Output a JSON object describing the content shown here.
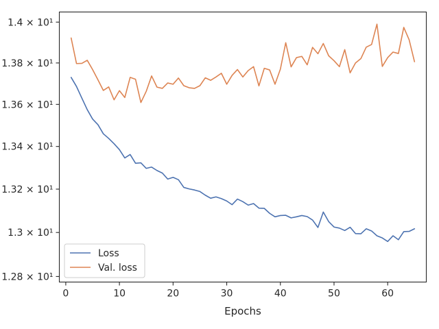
{
  "chart_data": {
    "type": "line",
    "title": "",
    "xlabel": "Epochs",
    "ylabel": "",
    "xlim": [
      -1.2,
      67.2
    ],
    "ylim": [
      12.775,
      14.05
    ],
    "y_scale": "log",
    "grid": false,
    "legend_position": "lower-left",
    "x_ticks": [
      0,
      10,
      20,
      30,
      40,
      50,
      60
    ],
    "x_tick_labels": [
      "0",
      "10",
      "20",
      "30",
      "40",
      "50",
      "60"
    ],
    "y_ticks": [
      12.8,
      13.0,
      13.2,
      13.4,
      13.6,
      13.8,
      14.0
    ],
    "y_tick_labels": [
      "1.28 × 10¹",
      "1.3 × 10¹",
      "1.32 × 10¹",
      "1.34 × 10¹",
      "1.36 × 10¹",
      "1.38 × 10¹",
      "1.4 × 10¹"
    ],
    "x": [
      1,
      2,
      3,
      4,
      5,
      6,
      7,
      8,
      9,
      10,
      11,
      12,
      13,
      14,
      15,
      16,
      17,
      18,
      19,
      20,
      21,
      22,
      23,
      24,
      25,
      26,
      27,
      28,
      29,
      30,
      31,
      32,
      33,
      34,
      35,
      36,
      37,
      38,
      39,
      40,
      41,
      42,
      43,
      44,
      45,
      46,
      47,
      48,
      49,
      50,
      51,
      52,
      53,
      54,
      55,
      56,
      57,
      58,
      59,
      60,
      61,
      62,
      63,
      64,
      65
    ],
    "series": [
      {
        "name": "Loss",
        "color": "#4c72b0",
        "values": [
          13.73,
          13.686,
          13.63,
          13.575,
          13.53,
          13.503,
          13.46,
          13.438,
          13.413,
          13.385,
          13.346,
          13.362,
          13.321,
          13.323,
          13.297,
          13.303,
          13.287,
          13.275,
          13.247,
          13.255,
          13.244,
          13.208,
          13.201,
          13.196,
          13.189,
          13.172,
          13.158,
          13.164,
          13.156,
          13.145,
          13.128,
          13.154,
          13.142,
          13.126,
          13.133,
          13.112,
          13.111,
          13.088,
          13.072,
          13.078,
          13.079,
          13.067,
          13.072,
          13.078,
          13.073,
          13.057,
          13.023,
          13.094,
          13.05,
          13.025,
          13.02,
          13.009,
          13.024,
          12.995,
          12.994,
          13.017,
          13.007,
          12.985,
          12.975,
          12.959,
          12.985,
          12.967,
          13.004,
          13.005,
          13.017
        ]
      },
      {
        "name": "Val. loss",
        "color": "#dd8452",
        "values": [
          13.922,
          13.797,
          13.798,
          13.813,
          13.768,
          13.718,
          13.667,
          13.684,
          13.622,
          13.666,
          13.633,
          13.73,
          13.721,
          13.609,
          13.663,
          13.737,
          13.683,
          13.677,
          13.703,
          13.697,
          13.727,
          13.69,
          13.68,
          13.677,
          13.69,
          13.728,
          13.716,
          13.732,
          13.75,
          13.697,
          13.74,
          13.768,
          13.732,
          13.763,
          13.782,
          13.689,
          13.774,
          13.766,
          13.697,
          13.77,
          13.899,
          13.781,
          13.826,
          13.832,
          13.791,
          13.876,
          13.845,
          13.895,
          13.835,
          13.811,
          13.782,
          13.865,
          13.752,
          13.8,
          13.821,
          13.877,
          13.89,
          13.99,
          13.783,
          13.826,
          13.853,
          13.846,
          13.974,
          13.913,
          13.806
        ]
      }
    ]
  }
}
